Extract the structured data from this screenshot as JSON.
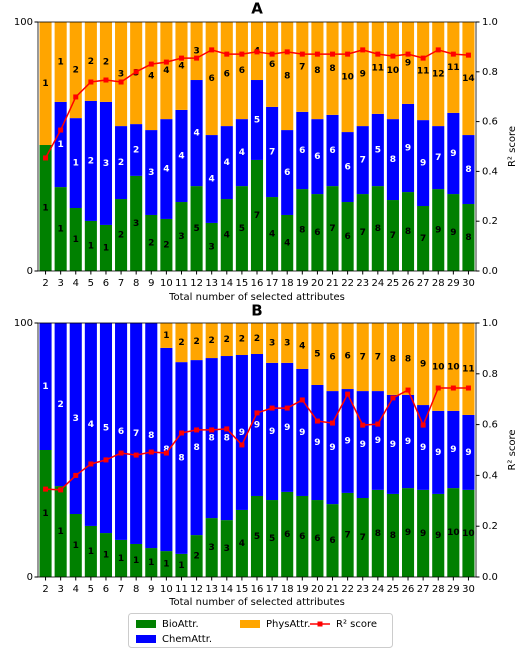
{
  "chart_data": [
    {
      "type": "bar",
      "title": "A",
      "xlabel": "Total number of selected attributes",
      "y2label": "R² score",
      "categories": [
        "2",
        "3",
        "4",
        "5",
        "6",
        "7",
        "8",
        "9",
        "10",
        "11",
        "12",
        "13",
        "14",
        "15",
        "16",
        "17",
        "18",
        "19",
        "20",
        "21",
        "22",
        "23",
        "24",
        "25",
        "26",
        "27",
        "28",
        "29",
        "30"
      ],
      "ylim": [
        0,
        100
      ],
      "yticks": [
        0,
        100
      ],
      "y2lim": [
        0,
        1
      ],
      "y2ticks": [
        {
          "value": 0,
          "label": "0.0"
        },
        0.2,
        0.4,
        0.6,
        0.8,
        {
          "value": 1,
          "label": "1.0"
        }
      ],
      "series": [
        {
          "name": "BioAttr.",
          "color": "#008000",
          "values": [
            50.6,
            33.7,
            25.3,
            20.1,
            18.5,
            28.9,
            38.2,
            22.5,
            20.9,
            27.7,
            34.1,
            19.3,
            28.9,
            34.1,
            44.6,
            29.7,
            22.5,
            32.9,
            30.9,
            34.1,
            27.7,
            30.9,
            34.1,
            28.5,
            31.7,
            26.1,
            32.9,
            30.9,
            26.9
          ],
          "counts": [
            1,
            1,
            1,
            1,
            1,
            2,
            3,
            2,
            2,
            3,
            5,
            3,
            4,
            5,
            7,
            4,
            4,
            8,
            6,
            7,
            6,
            7,
            8,
            7,
            8,
            7,
            9,
            9,
            8
          ]
        },
        {
          "name": "ChemAttr.",
          "color": "#0000ff",
          "values": [
            0,
            34.2,
            36.1,
            48.2,
            49.4,
            29.3,
            20.8,
            34.1,
            40.1,
            37.0,
            42.6,
            35.3,
            29.3,
            26.9,
            32.1,
            36.2,
            34.1,
            31.0,
            30.1,
            28.6,
            28.1,
            27.3,
            29.0,
            32.5,
            35.4,
            34.5,
            25.3,
            32.6,
            27.7
          ],
          "counts": [
            null,
            1,
            1,
            2,
            3,
            2,
            2,
            3,
            4,
            4,
            4,
            4,
            4,
            4,
            5,
            7,
            6,
            6,
            6,
            6,
            6,
            7,
            5,
            8,
            9,
            9,
            7,
            9,
            8
          ]
        },
        {
          "name": "PhysAttr.",
          "color": "#ffa500",
          "values": [
            49.4,
            32.1,
            38.6,
            31.7,
            32.1,
            41.8,
            41.0,
            43.4,
            39.0,
            35.3,
            23.3,
            45.4,
            41.8,
            39.0,
            23.3,
            34.1,
            43.4,
            36.1,
            39.0,
            37.3,
            44.2,
            41.8,
            36.9,
            39.0,
            32.9,
            39.4,
            41.8,
            36.5,
            45.4
          ],
          "counts": [
            1,
            1,
            2,
            2,
            2,
            3,
            3,
            4,
            4,
            4,
            3,
            6,
            6,
            6,
            4,
            6,
            8,
            7,
            8,
            8,
            10,
            9,
            11,
            10,
            9,
            11,
            12,
            11,
            14
          ]
        },
        {
          "name": "R² score",
          "color": "#ff0000",
          "axis": "y2",
          "values": [
            0.454,
            0.566,
            0.699,
            0.759,
            0.767,
            0.759,
            0.8,
            0.831,
            0.839,
            0.855,
            0.855,
            0.888,
            0.871,
            0.871,
            0.88,
            0.871,
            0.88,
            0.871,
            0.871,
            0.871,
            0.871,
            0.888,
            0.871,
            0.863,
            0.871,
            0.855,
            0.888,
            0.871,
            0.867
          ]
        }
      ]
    },
    {
      "type": "bar",
      "title": "B",
      "xlabel": "Total number of selected attributes",
      "y2label": "R² score",
      "categories": [
        "2",
        "3",
        "4",
        "5",
        "6",
        "7",
        "8",
        "9",
        "10",
        "11",
        "12",
        "13",
        "14",
        "15",
        "16",
        "17",
        "18",
        "19",
        "20",
        "21",
        "22",
        "23",
        "24",
        "25",
        "26",
        "27",
        "28",
        "29",
        "30"
      ],
      "ylim": [
        0,
        100
      ],
      "yticks": [
        0,
        100
      ],
      "y2lim": [
        0,
        1
      ],
      "y2ticks": [
        {
          "value": 0,
          "label": "0.0"
        },
        0.2,
        0.4,
        0.6,
        0.8,
        {
          "value": 1,
          "label": "1.0"
        }
      ],
      "series": [
        {
          "color": "#008000",
          "values": [
            50.0,
            35.8,
            24.8,
            20.1,
            17.3,
            14.6,
            13.0,
            11.4,
            10.2,
            9.1,
            16.5,
            23.2,
            22.4,
            26.4,
            31.9,
            30.3,
            33.5,
            31.9,
            30.3,
            28.7,
            33.1,
            31.1,
            34.3,
            32.7,
            35.0,
            34.3,
            32.7,
            35.0,
            34.3
          ],
          "counts": [
            1,
            1,
            1,
            1,
            1,
            1,
            1,
            1,
            1,
            1,
            2,
            3,
            3,
            4,
            5,
            5,
            6,
            6,
            6,
            6,
            7,
            7,
            8,
            8,
            9,
            9,
            9,
            10,
            10
          ]
        },
        {
          "color": "#0000ff",
          "values": [
            50.0,
            64.2,
            75.2,
            79.9,
            82.7,
            85.4,
            87.0,
            88.6,
            80.0,
            75.5,
            68.9,
            63.0,
            64.6,
            61.0,
            55.9,
            54.0,
            50.8,
            50.0,
            45.3,
            44.5,
            40.9,
            42.1,
            38.9,
            39.0,
            36.7,
            33.4,
            32.7,
            30.4,
            29.5
          ],
          "counts": [
            1,
            2,
            3,
            4,
            5,
            6,
            7,
            8,
            8,
            8,
            8,
            8,
            8,
            9,
            9,
            9,
            9,
            9,
            9,
            9,
            9,
            9,
            9,
            9,
            9,
            9,
            9,
            9,
            9
          ]
        },
        {
          "color": "#ffa500",
          "values": [
            0,
            0,
            0,
            0,
            0,
            0,
            0,
            0,
            9.8,
            15.4,
            14.6,
            13.8,
            13.0,
            12.6,
            12.2,
            15.7,
            15.7,
            18.1,
            24.4,
            26.8,
            26.0,
            26.8,
            26.8,
            28.3,
            28.3,
            32.3,
            34.6,
            34.6,
            36.2
          ],
          "counts": [
            null,
            null,
            null,
            null,
            null,
            null,
            null,
            null,
            1,
            2,
            2,
            2,
            2,
            2,
            2,
            3,
            3,
            4,
            5,
            6,
            6,
            7,
            7,
            8,
            8,
            9,
            10,
            10,
            11
          ]
        },
        {
          "color": "#ff0000",
          "axis": "y2",
          "values": [
            0.346,
            0.343,
            0.4,
            0.445,
            0.461,
            0.488,
            0.48,
            0.492,
            0.488,
            0.567,
            0.579,
            0.579,
            0.583,
            0.52,
            0.646,
            0.665,
            0.665,
            0.697,
            0.614,
            0.606,
            0.72,
            0.598,
            0.602,
            0.705,
            0.736,
            0.598,
            0.744,
            0.744,
            0.744
          ]
        }
      ]
    }
  ]
}
